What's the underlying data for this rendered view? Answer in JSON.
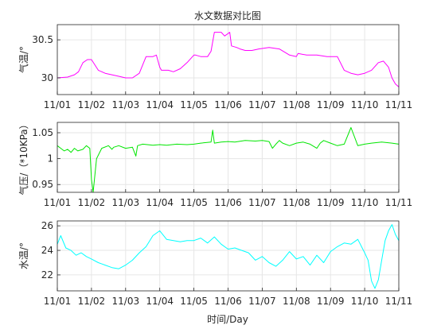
{
  "figure": {
    "title": "水文数据对比图",
    "xlabel": "时间/Day"
  },
  "chart_data": [
    {
      "type": "line",
      "ylabel": "气温/°",
      "x_ticks": [
        "11/01",
        "11/02",
        "11/03",
        "11/04",
        "11/05",
        "11/06",
        "11/07",
        "11/08",
        "11/09",
        "11/10",
        "11/11"
      ],
      "xlim": [
        0,
        10
      ],
      "ylim": [
        29.78,
        30.7
      ],
      "y_ticks": [
        30,
        30.5
      ],
      "grid": true,
      "color": "#ff00ff",
      "series": [
        {
          "x": [
            0,
            0.3,
            0.5,
            0.62,
            0.75,
            0.88,
            1.0,
            1.2,
            1.4,
            1.6,
            1.8,
            2.0,
            2.2,
            2.4,
            2.6,
            2.8,
            2.9,
            3.0,
            3.05,
            3.15,
            3.25,
            3.4,
            3.6,
            3.8,
            4.0,
            4.05,
            4.2,
            4.4,
            4.5,
            4.6,
            4.8,
            4.9,
            5.05,
            5.1,
            5.25,
            5.35,
            5.5,
            5.7,
            5.9,
            6.2,
            6.5,
            6.8,
            7.0,
            7.05,
            7.3,
            7.6,
            7.9,
            8.2,
            8.4,
            8.6,
            8.8,
            9.0,
            9.2,
            9.4,
            9.55,
            9.7,
            9.8,
            9.9,
            10.0
          ],
          "y": [
            30.0,
            30.01,
            30.04,
            30.08,
            30.2,
            30.24,
            30.24,
            30.1,
            30.06,
            30.04,
            30.02,
            30.0,
            30.0,
            30.06,
            30.28,
            30.28,
            30.3,
            30.14,
            30.1,
            30.1,
            30.1,
            30.08,
            30.12,
            30.2,
            30.3,
            30.3,
            30.28,
            30.28,
            30.35,
            30.6,
            30.6,
            30.55,
            30.6,
            30.42,
            30.4,
            30.38,
            30.36,
            30.36,
            30.38,
            30.4,
            30.38,
            30.3,
            30.28,
            30.32,
            30.3,
            30.3,
            30.28,
            30.28,
            30.1,
            30.06,
            30.04,
            30.06,
            30.1,
            30.2,
            30.22,
            30.14,
            30.0,
            29.92,
            29.88
          ]
        }
      ]
    },
    {
      "type": "line",
      "ylabel": "气压/（*10KPa）",
      "x_ticks": [
        "11/01",
        "11/02",
        "11/03",
        "11/04",
        "11/05",
        "11/06",
        "11/07",
        "11/08",
        "11/09",
        "11/10",
        "11/11"
      ],
      "xlim": [
        0,
        10
      ],
      "ylim": [
        0.935,
        1.07
      ],
      "y_ticks": [
        0.95,
        1,
        1.05
      ],
      "grid": true,
      "color": "#00e600",
      "series": [
        {
          "x": [
            0,
            0.1,
            0.2,
            0.3,
            0.4,
            0.5,
            0.6,
            0.75,
            0.85,
            0.95,
            1.0,
            1.05,
            1.15,
            1.3,
            1.5,
            1.6,
            1.65,
            1.8,
            2.0,
            2.2,
            2.3,
            2.35,
            2.5,
            2.8,
            3.0,
            3.2,
            3.5,
            3.8,
            4.0,
            4.2,
            4.5,
            4.55,
            4.6,
            4.8,
            5.0,
            5.2,
            5.5,
            5.8,
            6.0,
            6.2,
            6.3,
            6.4,
            6.5,
            6.6,
            6.8,
            7.0,
            7.2,
            7.4,
            7.6,
            7.7,
            7.8,
            8.0,
            8.2,
            8.4,
            8.6,
            8.8,
            9.0,
            9.2,
            9.5,
            9.8,
            10.0
          ],
          "y": [
            1.025,
            1.02,
            1.015,
            1.018,
            1.012,
            1.02,
            1.015,
            1.018,
            1.025,
            1.02,
            0.96,
            0.935,
            1.0,
            1.02,
            1.025,
            1.018,
            1.022,
            1.025,
            1.02,
            1.022,
            1.005,
            1.025,
            1.028,
            1.026,
            1.027,
            1.026,
            1.028,
            1.027,
            1.028,
            1.03,
            1.032,
            1.055,
            1.03,
            1.032,
            1.033,
            1.032,
            1.035,
            1.034,
            1.035,
            1.033,
            1.02,
            1.028,
            1.035,
            1.03,
            1.025,
            1.03,
            1.032,
            1.028,
            1.02,
            1.03,
            1.035,
            1.03,
            1.025,
            1.028,
            1.06,
            1.025,
            1.028,
            1.03,
            1.032,
            1.03,
            1.028
          ]
        }
      ]
    },
    {
      "type": "line",
      "ylabel": "水温/°",
      "x_ticks": [
        "11/01",
        "11/02",
        "11/03",
        "11/04",
        "11/05",
        "11/06",
        "11/07",
        "11/08",
        "11/09",
        "11/10",
        "11/11"
      ],
      "xlim": [
        0,
        10
      ],
      "ylim": [
        20.7,
        26.4
      ],
      "y_ticks": [
        22,
        24,
        26
      ],
      "grid": true,
      "color": "#00ffff",
      "series": [
        {
          "x": [
            0,
            0.1,
            0.25,
            0.4,
            0.55,
            0.7,
            0.85,
            1.0,
            1.2,
            1.4,
            1.6,
            1.8,
            2.0,
            2.2,
            2.4,
            2.6,
            2.8,
            3.0,
            3.2,
            3.4,
            3.6,
            3.8,
            4.0,
            4.2,
            4.4,
            4.6,
            4.8,
            5.0,
            5.2,
            5.4,
            5.6,
            5.8,
            6.0,
            6.2,
            6.4,
            6.6,
            6.8,
            7.0,
            7.2,
            7.4,
            7.6,
            7.8,
            8.0,
            8.2,
            8.4,
            8.6,
            8.8,
            9.0,
            9.1,
            9.2,
            9.3,
            9.4,
            9.5,
            9.6,
            9.7,
            9.8,
            9.9,
            10.0
          ],
          "y": [
            24.5,
            25.2,
            24.2,
            24.0,
            23.6,
            23.8,
            23.5,
            23.3,
            23.0,
            22.8,
            22.6,
            22.5,
            22.8,
            23.2,
            23.8,
            24.3,
            25.2,
            25.6,
            24.9,
            24.8,
            24.7,
            24.8,
            24.8,
            25.0,
            24.6,
            25.1,
            24.5,
            24.1,
            24.2,
            24.0,
            23.8,
            23.2,
            23.5,
            23.0,
            22.7,
            23.2,
            23.9,
            23.3,
            23.5,
            22.8,
            23.6,
            23.0,
            23.9,
            24.3,
            24.6,
            24.5,
            24.9,
            23.8,
            23.2,
            21.5,
            20.9,
            21.6,
            23.2,
            24.8,
            25.6,
            26.1,
            25.3,
            24.8
          ]
        }
      ]
    }
  ]
}
